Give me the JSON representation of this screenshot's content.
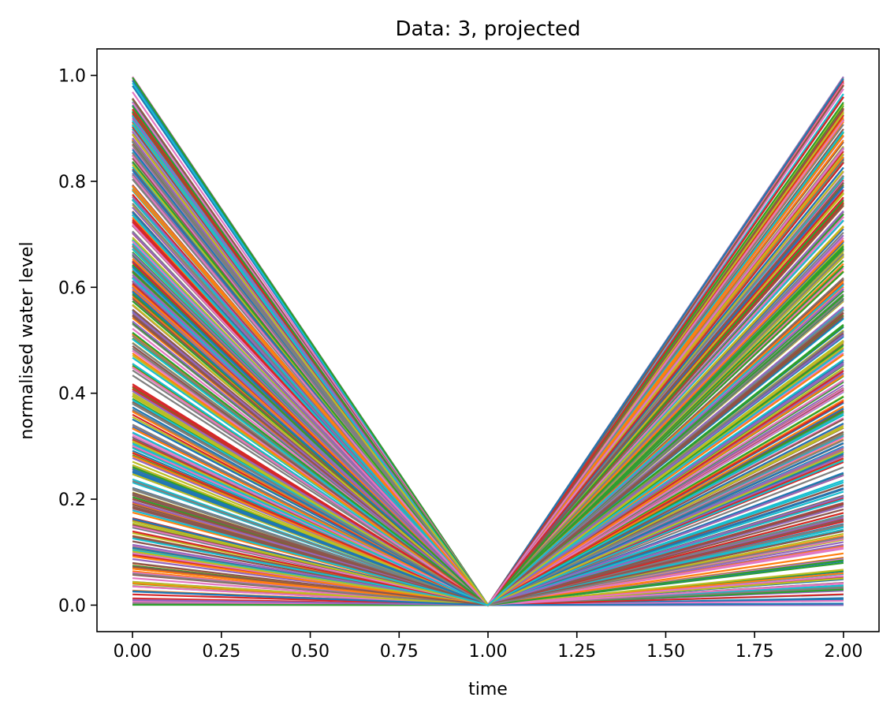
{
  "chart_data": {
    "type": "line",
    "title": "Data: 3, projected",
    "xlabel": "time",
    "ylabel": "normalised water level",
    "x": [
      0,
      1,
      2
    ],
    "xlim": [
      -0.1,
      2.1
    ],
    "ylim": [
      -0.05,
      1.05
    ],
    "xticks": [
      0.0,
      0.25,
      0.5,
      0.75,
      1.0,
      1.25,
      1.5,
      1.75,
      2.0
    ],
    "xtick_labels": [
      "0.00",
      "0.25",
      "0.50",
      "0.75",
      "1.00",
      "1.25",
      "1.50",
      "1.75",
      "2.00"
    ],
    "yticks": [
      0.0,
      0.2,
      0.4,
      0.6,
      0.8,
      1.0
    ],
    "ytick_labels": [
      "0.0",
      "0.2",
      "0.4",
      "0.6",
      "0.8",
      "1.0"
    ],
    "grid": false,
    "legend": "none",
    "series_count_estimate": 400,
    "series_pattern": "each series starts at a value in [0,1] at time 0, falls to 0 at time 1, rises to a value in [0,1] at time 2",
    "colors": [
      "#1f77b4",
      "#ff7f0e",
      "#2ca02c",
      "#d62728",
      "#9467bd",
      "#8c564b",
      "#e377c2",
      "#7f7f7f",
      "#bcbd22",
      "#17becf"
    ]
  }
}
